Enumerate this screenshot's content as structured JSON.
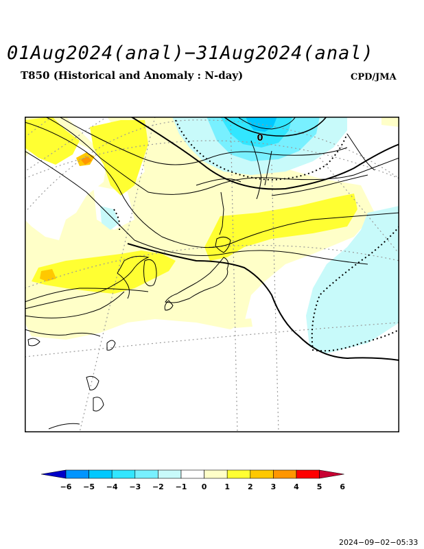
{
  "header": {
    "title": "01Aug2024(anal)−31Aug2024(anal)",
    "subtitle": "T850 (Historical and Anomaly : N-day)",
    "agency": "CPD/JMA"
  },
  "map": {
    "contour_label": "0"
  },
  "colorbar": {
    "ticks": [
      "−6",
      "−5",
      "−4",
      "−3",
      "−2",
      "−1",
      "0",
      "1",
      "2",
      "3",
      "4",
      "5",
      "6"
    ],
    "colors": [
      "#0000ff",
      "#0095ff",
      "#00c8ff",
      "#32e6ff",
      "#78f0ff",
      "#c8fafa",
      "#ffffff",
      "#ffffc8",
      "#ffff32",
      "#ffc800",
      "#ff9600",
      "#ff0000",
      "#c80032"
    ],
    "lower_arrow_color": "#0000c8",
    "upper_arrow_color": "#c80032"
  },
  "footer": {
    "timestamp": "2024−09−02−05:33"
  }
}
